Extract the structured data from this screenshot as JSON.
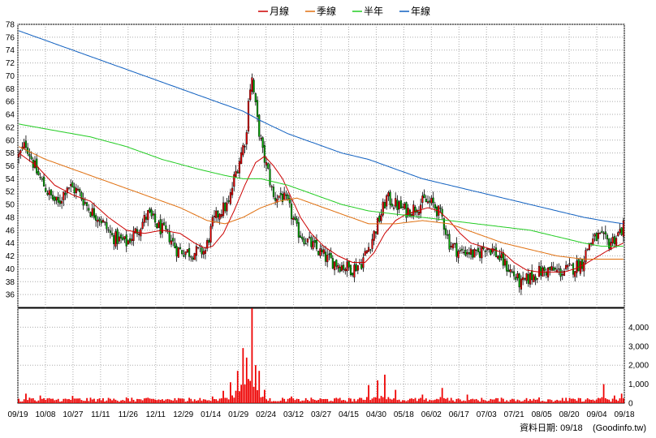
{
  "chart_data": [
    {
      "type": "candlestick",
      "title": "",
      "ylim": [
        34,
        78
      ],
      "y_ticks": [
        36,
        38,
        40,
        42,
        44,
        46,
        48,
        50,
        52,
        54,
        56,
        58,
        60,
        62,
        64,
        66,
        68,
        70,
        72,
        74,
        76,
        78
      ],
      "x_ticks": [
        "09/19",
        "10/08",
        "10/27",
        "11/11",
        "11/26",
        "12/11",
        "12/29",
        "01/14",
        "01/29",
        "02/24",
        "03/12",
        "03/27",
        "04/15",
        "04/30",
        "05/18",
        "06/02",
        "06/17",
        "07/03",
        "07/21",
        "08/05",
        "08/20",
        "09/04",
        "09/18"
      ],
      "grid": true,
      "legend_position": "top",
      "legend": [
        {
          "name": "月線",
          "color": "#cc0000"
        },
        {
          "name": "季線",
          "color": "#e07010"
        },
        {
          "name": "半年",
          "color": "#22cc22"
        },
        {
          "name": "年線",
          "color": "#1060c0"
        }
      ],
      "price_path": [
        [
          0,
          57.5
        ],
        [
          4,
          59.5
        ],
        [
          10,
          55
        ],
        [
          17,
          51.5
        ],
        [
          22,
          50
        ],
        [
          27,
          53
        ],
        [
          33,
          52
        ],
        [
          40,
          49
        ],
        [
          45,
          48
        ],
        [
          52,
          45
        ],
        [
          60,
          44
        ],
        [
          66,
          46
        ],
        [
          72,
          48.5
        ],
        [
          78,
          46.5
        ],
        [
          84,
          45
        ],
        [
          88,
          43
        ],
        [
          96,
          42.5
        ],
        [
          104,
          42.8
        ],
        [
          108,
          47
        ],
        [
          112,
          49
        ],
        [
          117,
          50
        ],
        [
          120,
          54
        ],
        [
          124,
          58
        ],
        [
          127,
          61
        ],
        [
          128,
          67
        ],
        [
          130,
          69.5
        ],
        [
          133,
          63
        ],
        [
          136,
          58
        ],
        [
          139,
          55
        ],
        [
          142,
          51
        ],
        [
          146,
          51.5
        ],
        [
          150,
          50
        ],
        [
          155,
          46
        ],
        [
          160,
          44.5
        ],
        [
          166,
          43
        ],
        [
          172,
          41.5
        ],
        [
          180,
          40.5
        ],
        [
          186,
          40
        ],
        [
          191,
          41
        ],
        [
          196,
          44
        ],
        [
          200,
          47
        ],
        [
          205,
          51
        ],
        [
          210,
          50
        ],
        [
          216,
          49
        ],
        [
          221,
          49.5
        ],
        [
          226,
          50.5
        ],
        [
          231,
          50
        ],
        [
          236,
          48
        ],
        [
          240,
          44
        ],
        [
          246,
          42.5
        ],
        [
          250,
          42.8
        ],
        [
          255,
          42
        ],
        [
          260,
          43.5
        ],
        [
          264,
          43
        ],
        [
          270,
          41
        ],
        [
          276,
          39
        ],
        [
          280,
          37.5
        ],
        [
          284,
          38.5
        ],
        [
          290,
          39.5
        ],
        [
          296,
          39.8
        ],
        [
          302,
          39.5
        ],
        [
          308,
          40
        ],
        [
          314,
          41
        ],
        [
          318,
          44
        ],
        [
          323,
          45
        ],
        [
          329,
          44
        ],
        [
          333,
          45
        ],
        [
          337,
          46.5
        ]
      ],
      "series": [
        {
          "name": "月線",
          "points": [
            [
              0,
              58
            ],
            [
              10,
              56
            ],
            [
              20,
              53
            ],
            [
              30,
              51.5
            ],
            [
              40,
              50.5
            ],
            [
              50,
              48
            ],
            [
              60,
              46
            ],
            [
              70,
              45.5
            ],
            [
              80,
              46
            ],
            [
              90,
              45.5
            ],
            [
              98,
              44
            ],
            [
              104,
              43.2
            ],
            [
              108,
              43.5
            ],
            [
              114,
              45.5
            ],
            [
              120,
              49
            ],
            [
              126,
              53
            ],
            [
              132,
              56.5
            ],
            [
              137,
              57.5
            ],
            [
              142,
              56
            ],
            [
              147,
              54
            ],
            [
              152,
              51
            ],
            [
              157,
              48
            ],
            [
              163,
              45.5
            ],
            [
              170,
              43.5
            ],
            [
              178,
              42
            ],
            [
              186,
              41
            ],
            [
              193,
              41
            ],
            [
              198,
              42.5
            ],
            [
              204,
              45.5
            ],
            [
              210,
              47.5
            ],
            [
              216,
              48.5
            ],
            [
              222,
              49
            ],
            [
              228,
              49.5
            ],
            [
              234,
              49
            ],
            [
              240,
              47.5
            ],
            [
              246,
              45.5
            ],
            [
              252,
              44
            ],
            [
              258,
              43.5
            ],
            [
              264,
              43
            ],
            [
              270,
              42.5
            ],
            [
              276,
              41
            ],
            [
              283,
              39.8
            ],
            [
              290,
              39.5
            ],
            [
              297,
              39.5
            ],
            [
              304,
              39.5
            ],
            [
              310,
              40
            ],
            [
              316,
              40.8
            ],
            [
              322,
              41.8
            ],
            [
              328,
              42.8
            ],
            [
              333,
              43.5
            ],
            [
              337,
              44
            ]
          ]
        },
        {
          "name": "季線",
          "points": [
            [
              0,
              59
            ],
            [
              15,
              57
            ],
            [
              30,
              55.5
            ],
            [
              45,
              54
            ],
            [
              60,
              52.5
            ],
            [
              75,
              51
            ],
            [
              90,
              49.5
            ],
            [
              105,
              47.5
            ],
            [
              115,
              47
            ],
            [
              125,
              48
            ],
            [
              135,
              49.5
            ],
            [
              145,
              50.5
            ],
            [
              155,
              51
            ],
            [
              165,
              50
            ],
            [
              180,
              48.5
            ],
            [
              195,
              47
            ],
            [
              210,
              47
            ],
            [
              225,
              47.5
            ],
            [
              240,
              47
            ],
            [
              255,
              45.5
            ],
            [
              270,
              44
            ],
            [
              285,
              43
            ],
            [
              300,
              42
            ],
            [
              315,
              41.5
            ],
            [
              325,
              41.5
            ],
            [
              337,
              41.5
            ]
          ]
        },
        {
          "name": "半年",
          "points": [
            [
              0,
              62.5
            ],
            [
              20,
              61.5
            ],
            [
              40,
              60.5
            ],
            [
              60,
              59
            ],
            [
              80,
              57
            ],
            [
              100,
              55.5
            ],
            [
              115,
              54.5
            ],
            [
              125,
              54
            ],
            [
              135,
              54
            ],
            [
              150,
              53
            ],
            [
              165,
              51.5
            ],
            [
              180,
              50
            ],
            [
              195,
              49
            ],
            [
              210,
              48.5
            ],
            [
              225,
              48
            ],
            [
              240,
              47.5
            ],
            [
              255,
              47
            ],
            [
              270,
              46.5
            ],
            [
              285,
              46
            ],
            [
              300,
              45
            ],
            [
              315,
              44
            ],
            [
              325,
              43.5
            ],
            [
              337,
              43.5
            ]
          ]
        },
        {
          "name": "年線",
          "points": [
            [
              0,
              77
            ],
            [
              20,
              75
            ],
            [
              40,
              73
            ],
            [
              60,
              71
            ],
            [
              80,
              69
            ],
            [
              100,
              67
            ],
            [
              115,
              65.5
            ],
            [
              125,
              64.5
            ],
            [
              135,
              63
            ],
            [
              150,
              61
            ],
            [
              165,
              59.5
            ],
            [
              180,
              58
            ],
            [
              195,
              57
            ],
            [
              210,
              55.5
            ],
            [
              225,
              54
            ],
            [
              240,
              53
            ],
            [
              255,
              52
            ],
            [
              270,
              51
            ],
            [
              285,
              50
            ],
            [
              300,
              49
            ],
            [
              315,
              48
            ],
            [
              325,
              47.5
            ],
            [
              337,
              47
            ]
          ]
        }
      ]
    },
    {
      "type": "bar",
      "title": "",
      "ylim": [
        0,
        5000
      ],
      "y_ticks": [
        "0",
        "1,000",
        "2,000",
        "3,000",
        "4,000"
      ],
      "x_ticks": [
        "09/19",
        "10/08",
        "10/27",
        "11/11",
        "11/26",
        "12/11",
        "12/29",
        "01/14",
        "01/29",
        "02/24",
        "03/12",
        "03/27",
        "04/15",
        "04/30",
        "05/18",
        "06/02",
        "06/17",
        "07/03",
        "07/21",
        "08/05",
        "08/20",
        "09/04",
        "09/18"
      ],
      "color": "#ee0000",
      "base_level": 180,
      "peaks": [
        [
          4,
          500
        ],
        [
          12,
          400
        ],
        [
          30,
          380
        ],
        [
          60,
          300
        ],
        [
          95,
          280
        ],
        [
          108,
          350
        ],
        [
          114,
          650
        ],
        [
          118,
          1100
        ],
        [
          122,
          1700
        ],
        [
          125,
          2900
        ],
        [
          127,
          2400
        ],
        [
          130,
          5000
        ],
        [
          132,
          2000
        ],
        [
          134,
          1700
        ],
        [
          137,
          700
        ],
        [
          152,
          350
        ],
        [
          195,
          950
        ],
        [
          200,
          1200
        ],
        [
          204,
          1500
        ],
        [
          210,
          700
        ],
        [
          225,
          450
        ],
        [
          236,
          800
        ],
        [
          250,
          450
        ],
        [
          290,
          300
        ],
        [
          305,
          280
        ],
        [
          326,
          1000
        ],
        [
          332,
          400
        ],
        [
          336,
          500
        ]
      ]
    }
  ],
  "footer": {
    "label": "資料日期: 09/18",
    "source": "(Goodinfo.tw)"
  }
}
